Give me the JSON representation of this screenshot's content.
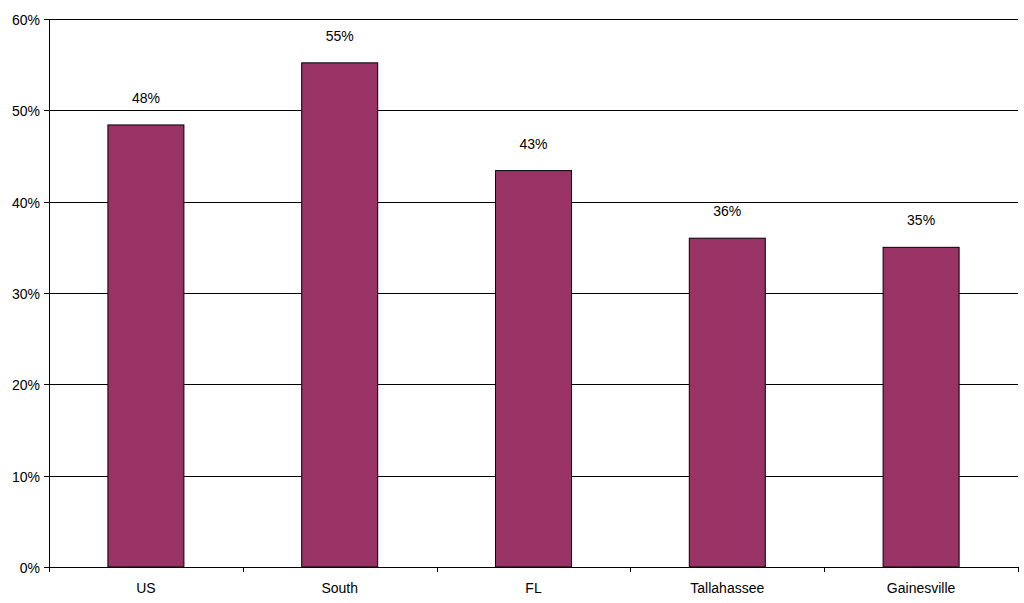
{
  "chart_data": {
    "type": "bar",
    "categories": [
      "US",
      "South",
      "FL",
      "Tallahassee",
      "Gainesville"
    ],
    "values": [
      48.4,
      55.2,
      43.4,
      36,
      35
    ],
    "value_labels": [
      "48%",
      "55%",
      "43%",
      "36%",
      "35%"
    ],
    "color": "#993366",
    "ylim": [
      0,
      60
    ],
    "yticks": [
      {
        "value": 0,
        "label": "0%"
      },
      {
        "value": 10,
        "label": "10%"
      },
      {
        "value": 20,
        "label": "20%"
      },
      {
        "value": 30,
        "label": "30%"
      },
      {
        "value": 40,
        "label": "40%"
      },
      {
        "value": 50,
        "label": "50%"
      },
      {
        "value": 60,
        "label": "60%"
      }
    ],
    "grid": true,
    "data_labels": true
  }
}
